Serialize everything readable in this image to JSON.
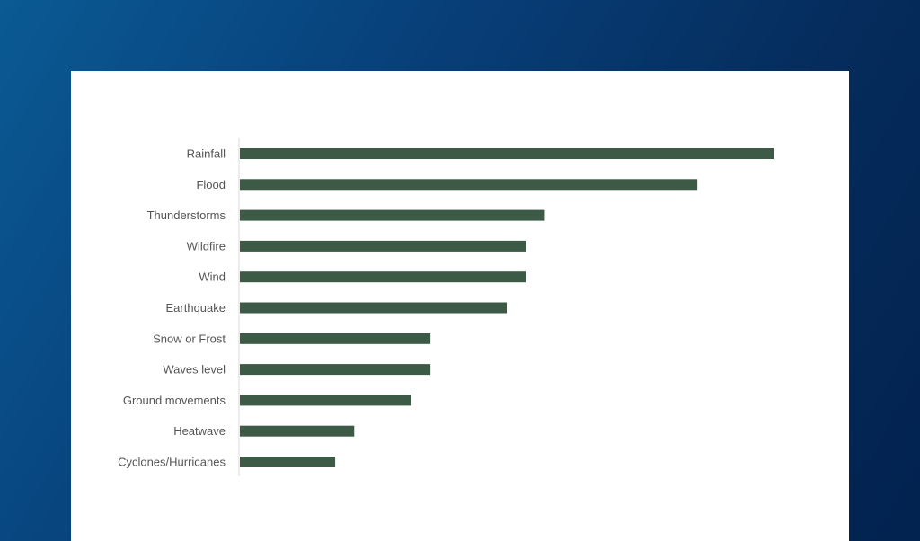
{
  "chart_data": {
    "type": "bar",
    "orientation": "horizontal",
    "title": "",
    "xlabel": "",
    "ylabel": "",
    "categories": [
      "Rainfall",
      "Flood",
      "Thunderstorms",
      "Wildfire",
      "Wind",
      "Earthquake",
      "Snow or Frost",
      "Waves level",
      "Ground movements",
      "Heatwave",
      "Cyclones/Hurricanes"
    ],
    "values": [
      28,
      24,
      16,
      15,
      15,
      14,
      10,
      10,
      9,
      6,
      5
    ],
    "xlim": [
      0,
      28
    ],
    "grid": false,
    "legend": "none",
    "bar_color": "#3c5a45"
  },
  "colors": {
    "background_start": "#0a5a94",
    "background_end": "#02224f",
    "card": "#ffffff",
    "label": "#555555",
    "axis": "#d9d9d9"
  }
}
